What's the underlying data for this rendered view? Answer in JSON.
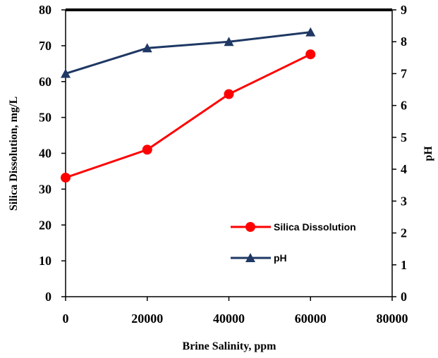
{
  "chart_data": {
    "type": "line",
    "x": [
      0,
      20000,
      40000,
      60000
    ],
    "series": [
      {
        "name": "Silica Dissolution",
        "axis": "left",
        "marker": "circle",
        "color": "#ff0000",
        "values": [
          33.2,
          41.0,
          56.5,
          67.6
        ]
      },
      {
        "name": "pH",
        "axis": "right",
        "marker": "triangle",
        "color": "#1f3864",
        "values": [
          7.0,
          7.8,
          8.0,
          8.3
        ]
      }
    ],
    "xlabel": "Brine Salinity, ppm",
    "ylabel": "Silica Dissolution, mg/L",
    "y2label": "pH",
    "xlim": [
      0,
      80000
    ],
    "ylim": [
      0,
      80
    ],
    "y2lim": [
      0,
      9
    ],
    "xticks": [
      "0",
      "20000",
      "40000",
      "60000",
      "80000"
    ],
    "yticks": [
      "0",
      "10",
      "20",
      "30",
      "40",
      "50",
      "60",
      "70",
      "80"
    ],
    "y2ticks": [
      "0",
      "1",
      "2",
      "3",
      "4",
      "5",
      "6",
      "7",
      "8",
      "9"
    ],
    "grid": false,
    "legend": "bottom-right"
  }
}
